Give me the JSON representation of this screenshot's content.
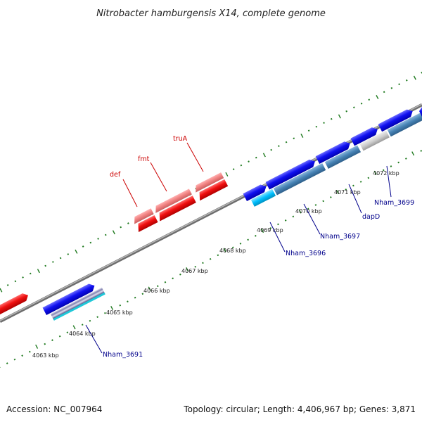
{
  "title": "Nitrobacter hamburgensis X14, complete genome",
  "footer": {
    "accession": "Accession: NC_007964",
    "topology": "Topology: circular; Length: 4,406,967 bp; Genes: 3,871"
  },
  "colors": {
    "backbone": "#8a8a8a",
    "tick": "#1f7a1f",
    "forward_gene": "#0000ee",
    "reverse_gene": "#ee0000",
    "reverse_gene_light": "#f08080",
    "cds_steelblue": "#4682b4",
    "cds_cyan": "#00bfff",
    "label_red": "#cc0000",
    "label_blue": "#00008b"
  },
  "kbp_labels": [
    "4063 kbp",
    "4064 kbp",
    "4065 kbp",
    "4066 kbp",
    "4067 kbp",
    "4068 kbp",
    "4069 kbp",
    "4070 kbp",
    "4071 kbp",
    "4072 kbp"
  ],
  "gene_labels": {
    "def": "def",
    "fmt": "fmt",
    "truA": "truA",
    "nham_3691": "Nham_3691",
    "nham_3696": "Nham_3696",
    "nham_3697": "Nham_3697",
    "dapD": "dapD",
    "nham_3699": "Nham_3699"
  }
}
